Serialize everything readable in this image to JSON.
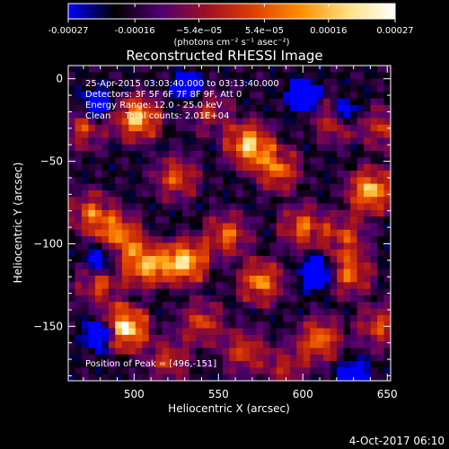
{
  "chart_data": {
    "type": "heatmap",
    "title": "Reconstructed RHESSI Image",
    "xlabel": "Heliocentric X (arcsec)",
    "ylabel": "Heliocentric Y (arcsec)",
    "xlim": [
      461,
      652
    ],
    "ylim": [
      -183,
      8
    ],
    "x_ticks": [
      500,
      550,
      600,
      650
    ],
    "y_ticks": [
      0,
      -50,
      -100,
      -150
    ],
    "colorbar": {
      "range": [
        -0.00027,
        0.00027
      ],
      "tick_values": [
        -0.00027,
        -0.00016,
        -5.4e-05,
        5.4e-05,
        0.00016,
        0.00027
      ],
      "tick_labels": [
        "-0.00027",
        "-0.00016",
        "−5.4e−05",
        "5.4e−05",
        "0.00016",
        "0.00027"
      ],
      "units_label": "(photons cm⁻² s⁻¹ asec⁻²)",
      "colormap": [
        "#0000ff",
        "#000000",
        "#500070",
        "#a01020",
        "#e04000",
        "#ff9000",
        "#ffe080",
        "#ffffff"
      ]
    },
    "annotations": [
      "25-Apr-2015 03:03:40.000 to 03:13:40.000",
      "Detectors: 3F 5F 6F 7F 8F 9F, Att 0",
      "Energy Range: 12.0 - 25.0 keV",
      "Clean     Total counts: 2.01E+04"
    ],
    "peak_label": "Position of Peak = [496,-151]",
    "hot_spots": [
      {
        "x": 495,
        "y": -151,
        "v": 1.0
      },
      {
        "x": 530,
        "y": -111,
        "v": 0.95
      },
      {
        "x": 507,
        "y": -113,
        "v": 0.85
      },
      {
        "x": 502,
        "y": -24,
        "v": 0.85
      },
      {
        "x": 568,
        "y": -40,
        "v": 0.9
      },
      {
        "x": 640,
        "y": -68,
        "v": 0.85
      },
      {
        "x": 585,
        "y": -55,
        "v": 0.65
      },
      {
        "x": 525,
        "y": -60,
        "v": 0.55
      },
      {
        "x": 475,
        "y": -82,
        "v": 0.6
      },
      {
        "x": 492,
        "y": -95,
        "v": 0.7
      },
      {
        "x": 555,
        "y": -95,
        "v": 0.6
      },
      {
        "x": 620,
        "y": -25,
        "v": 0.55
      },
      {
        "x": 600,
        "y": -90,
        "v": 0.6
      },
      {
        "x": 575,
        "y": -123,
        "v": 0.7
      },
      {
        "x": 628,
        "y": -118,
        "v": 0.6
      },
      {
        "x": 610,
        "y": -158,
        "v": 0.65
      },
      {
        "x": 565,
        "y": -165,
        "v": 0.5
      },
      {
        "x": 540,
        "y": -148,
        "v": 0.5
      },
      {
        "x": 520,
        "y": -170,
        "v": 0.45
      },
      {
        "x": 480,
        "y": -125,
        "v": 0.5
      },
      {
        "x": 645,
        "y": -150,
        "v": 0.5
      },
      {
        "x": 470,
        "y": -30,
        "v": 0.45
      },
      {
        "x": 545,
        "y": -20,
        "v": 0.4
      },
      {
        "x": 590,
        "y": -175,
        "v": 0.4
      },
      {
        "x": 648,
        "y": -30,
        "v": 0.45
      },
      {
        "x": 625,
        "y": -95,
        "v": 0.5
      }
    ],
    "cold_spots": [
      {
        "x": 600,
        "y": -10,
        "v": 0.9
      },
      {
        "x": 625,
        "y": -20,
        "v": 0.7
      },
      {
        "x": 608,
        "y": -118,
        "v": 0.9
      },
      {
        "x": 478,
        "y": -15,
        "v": 0.7
      },
      {
        "x": 480,
        "y": -155,
        "v": 0.7
      },
      {
        "x": 630,
        "y": -180,
        "v": 0.7
      },
      {
        "x": 532,
        "y": -5,
        "v": 0.6
      },
      {
        "x": 480,
        "y": -110,
        "v": 0.5
      }
    ]
  },
  "footer": {
    "date": "4-Oct-2017 06:10"
  }
}
